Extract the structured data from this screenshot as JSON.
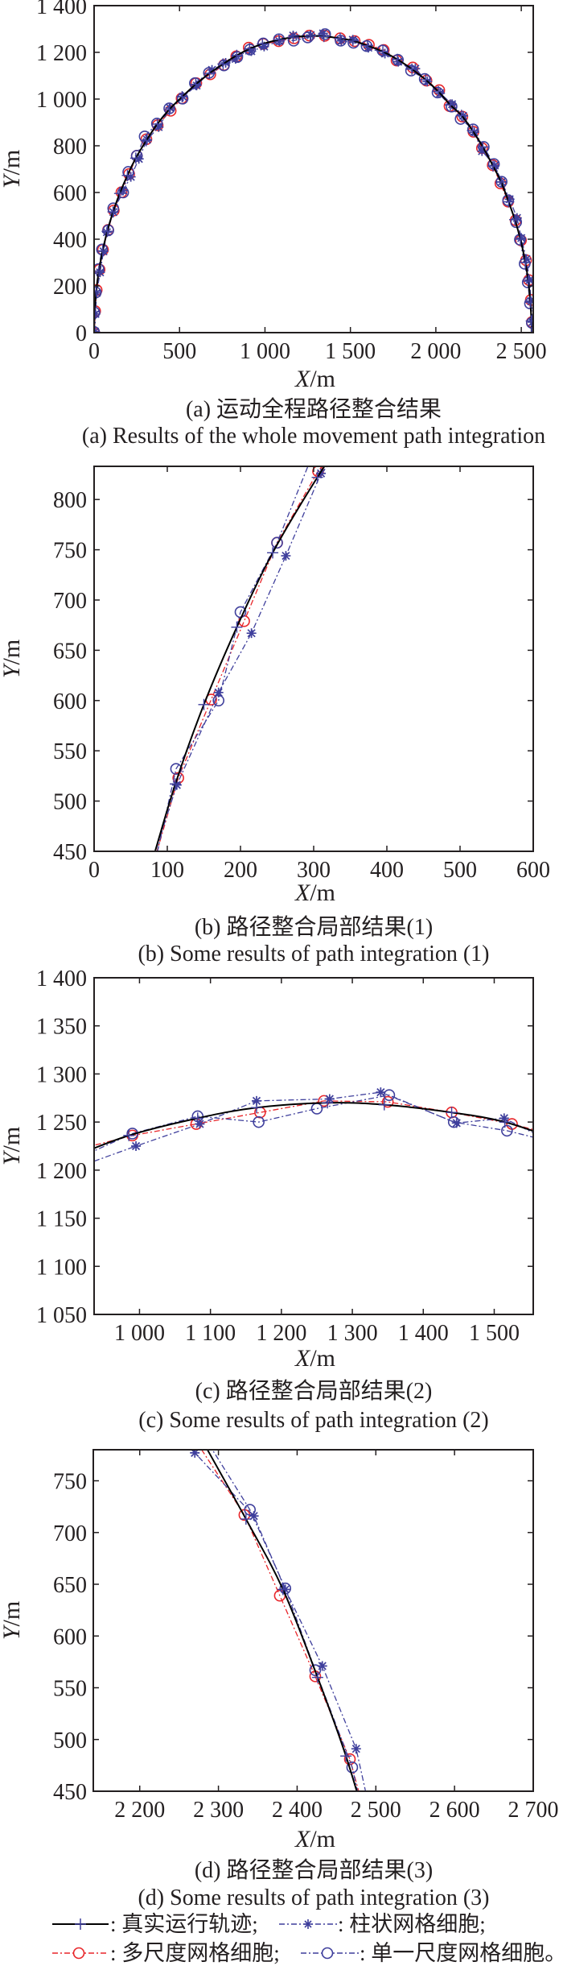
{
  "colors": {
    "true_path": "#000000",
    "multi_scale": "#e8262a",
    "blue": "#3f3f9c",
    "axis": "#231f20"
  },
  "chart_data": {
    "type": "line",
    "xlabel_var": "X",
    "ylabel_var": "Y",
    "unit": "/m",
    "series": [
      {
        "name": "真实运行轨迹",
        "key": "true_path",
        "marker": "plus",
        "line": "solid",
        "points": [
          [
            0,
            0
          ],
          [
            3,
            89
          ],
          [
            12,
            177
          ],
          [
            28,
            264
          ],
          [
            50,
            350
          ],
          [
            77,
            434
          ],
          [
            111,
            517
          ],
          [
            150,
            596
          ],
          [
            195,
            673
          ],
          [
            244,
            747
          ],
          [
            305,
            822
          ],
          [
            370,
            893
          ],
          [
            440,
            955
          ],
          [
            515,
            1010
          ],
          [
            595,
            1063
          ],
          [
            675,
            1110
          ],
          [
            755,
            1150
          ],
          [
            835,
            1187
          ],
          [
            910,
            1215
          ],
          [
            985,
            1236
          ],
          [
            1082,
            1254
          ],
          [
            1165,
            1265
          ],
          [
            1265,
            1270
          ],
          [
            1345,
            1268
          ],
          [
            1440,
            1260
          ],
          [
            1515,
            1250
          ],
          [
            1600,
            1229
          ],
          [
            1690,
            1203
          ],
          [
            1775,
            1170
          ],
          [
            1860,
            1128
          ],
          [
            1940,
            1083
          ],
          [
            2015,
            1032
          ],
          [
            2085,
            975
          ],
          [
            2150,
            930
          ],
          [
            2215,
            865
          ],
          [
            2275,
            795
          ],
          [
            2335,
            713
          ],
          [
            2382,
            645
          ],
          [
            2426,
            560
          ],
          [
            2462,
            484
          ],
          [
            2495,
            400
          ],
          [
            2524,
            300
          ],
          [
            2541,
            220
          ],
          [
            2553,
            130
          ],
          [
            2559,
            50
          ],
          [
            2560,
            0
          ]
        ]
      },
      {
        "name": "多尺度网格细胞",
        "key": "multi_scale",
        "marker": "circle",
        "line": "dashdot",
        "points": [
          [
            2,
            -3
          ],
          [
            6,
            92
          ],
          [
            15,
            182
          ],
          [
            32,
            270
          ],
          [
            52,
            355
          ],
          [
            82,
            440
          ],
          [
            115,
            523
          ],
          [
            160,
            601
          ],
          [
            205,
            679
          ],
          [
            250,
            757
          ],
          [
            306,
            828
          ],
          [
            372,
            888
          ],
          [
            448,
            950
          ],
          [
            512,
            1003
          ],
          [
            598,
            1068
          ],
          [
            680,
            1106
          ],
          [
            760,
            1146
          ],
          [
            832,
            1183
          ],
          [
            905,
            1220
          ],
          [
            990,
            1236
          ],
          [
            1080,
            1248
          ],
          [
            1170,
            1260
          ],
          [
            1260,
            1272
          ],
          [
            1350,
            1271
          ],
          [
            1440,
            1260
          ],
          [
            1525,
            1248
          ],
          [
            1608,
            1232
          ],
          [
            1695,
            1210
          ],
          [
            1770,
            1165
          ],
          [
            1865,
            1135
          ],
          [
            1945,
            1079
          ],
          [
            2020,
            1038
          ],
          [
            2080,
            970
          ],
          [
            2155,
            925
          ],
          [
            2220,
            860
          ],
          [
            2270,
            790
          ],
          [
            2333,
            717
          ],
          [
            2378,
            639
          ],
          [
            2423,
            561
          ],
          [
            2467,
            481
          ],
          [
            2498,
            395
          ],
          [
            2528,
            310
          ],
          [
            2545,
            225
          ],
          [
            2556,
            140
          ],
          [
            2562,
            45
          ]
        ]
      },
      {
        "name": "柱状网格细胞",
        "key": "columnar",
        "marker": "star",
        "line": "dashdot",
        "points": [
          [
            5,
            5
          ],
          [
            8,
            80
          ],
          [
            15,
            170
          ],
          [
            35,
            258
          ],
          [
            55,
            348
          ],
          [
            75,
            430
          ],
          [
            113,
            516
          ],
          [
            170,
            608
          ],
          [
            215,
            667
          ],
          [
            262,
            744
          ],
          [
            310,
            826
          ],
          [
            378,
            880
          ],
          [
            445,
            962
          ],
          [
            520,
            1010
          ],
          [
            600,
            1058
          ],
          [
            690,
            1125
          ],
          [
            770,
            1155
          ],
          [
            828,
            1172
          ],
          [
            920,
            1205
          ],
          [
            995,
            1225
          ],
          [
            1085,
            1248
          ],
          [
            1165,
            1272
          ],
          [
            1268,
            1274
          ],
          [
            1340,
            1281
          ],
          [
            1447,
            1249
          ],
          [
            1514,
            1254
          ],
          [
            1605,
            1220
          ],
          [
            1702,
            1195
          ],
          [
            1780,
            1160
          ],
          [
            1880,
            1130
          ],
          [
            1950,
            1075
          ],
          [
            2025,
            1025
          ],
          [
            2095,
            978
          ],
          [
            2160,
            928
          ],
          [
            2225,
            858
          ],
          [
            2270,
            777
          ],
          [
            2345,
            716
          ],
          [
            2385,
            645
          ],
          [
            2432,
            571
          ],
          [
            2475,
            491
          ],
          [
            2500,
            405
          ],
          [
            2530,
            315
          ],
          [
            2548,
            225
          ],
          [
            2557,
            135
          ],
          [
            2565,
            45
          ]
        ]
      },
      {
        "name": "单一尺度网格细胞",
        "key": "single_scale",
        "marker": "circle",
        "line": "dashdot",
        "points": [
          [
            0,
            3
          ],
          [
            2,
            86
          ],
          [
            10,
            172
          ],
          [
            26,
            272
          ],
          [
            46,
            356
          ],
          [
            83,
            438
          ],
          [
            112,
            532
          ],
          [
            170,
            600
          ],
          [
            200,
            688
          ],
          [
            250,
            757
          ],
          [
            296,
            840
          ],
          [
            368,
            895
          ],
          [
            440,
            960
          ],
          [
            518,
            1002
          ],
          [
            590,
            1068
          ],
          [
            672,
            1112
          ],
          [
            760,
            1144
          ],
          [
            838,
            1180
          ],
          [
            912,
            1212
          ],
          [
            990,
            1238
          ],
          [
            1082,
            1256
          ],
          [
            1168,
            1250
          ],
          [
            1250,
            1264
          ],
          [
            1352,
            1278
          ],
          [
            1443,
            1250
          ],
          [
            1518,
            1241
          ],
          [
            1595,
            1227
          ],
          [
            1688,
            1208
          ],
          [
            1778,
            1168
          ],
          [
            1855,
            1122
          ],
          [
            1935,
            1086
          ],
          [
            2010,
            1028
          ],
          [
            2092,
            968
          ],
          [
            2145,
            915
          ],
          [
            2218,
            870
          ],
          [
            2280,
            795
          ],
          [
            2340,
            722
          ],
          [
            2385,
            646
          ],
          [
            2423,
            567
          ],
          [
            2470,
            473
          ],
          [
            2492,
            398
          ],
          [
            2520,
            295
          ],
          [
            2538,
            215
          ],
          [
            2551,
            125
          ],
          [
            2562,
            42
          ]
        ]
      }
    ],
    "panels": [
      {
        "id": "a",
        "xlim": [
          0,
          2570
        ],
        "ylim": [
          0,
          1400
        ],
        "xticks": [
          0,
          500,
          1000,
          1500,
          2000,
          2500
        ],
        "xtick_labels": [
          "0",
          "500",
          "1 000",
          "1 500",
          "2 000",
          "2 500"
        ],
        "yticks": [
          0,
          200,
          400,
          600,
          800,
          1000,
          1200,
          1400
        ],
        "ytick_labels": [
          "0",
          "200",
          "400",
          "600",
          "800",
          "1 000",
          "1 200",
          "1 400"
        ],
        "caption_cn": "(a) 运动全程路径整合结果",
        "caption_en": "(a) Results of the whole movement path integration"
      },
      {
        "id": "b",
        "xlim": [
          0,
          600
        ],
        "ylim": [
          450,
          833
        ],
        "xticks": [
          0,
          100,
          200,
          300,
          400,
          500,
          600
        ],
        "xtick_labels": [
          "0",
          "100",
          "200",
          "300",
          "400",
          "500",
          "600"
        ],
        "yticks": [
          450,
          500,
          550,
          600,
          650,
          700,
          750,
          800
        ],
        "ytick_labels": [
          "450",
          "500",
          "550",
          "600",
          "650",
          "700",
          "750",
          "800"
        ],
        "caption_cn": "(b) 路径整合局部结果(1)",
        "caption_en": "(b) Some results of path integration (1)"
      },
      {
        "id": "c",
        "xlim": [
          936,
          1555
        ],
        "ylim": [
          1050,
          1400
        ],
        "xticks": [
          1000,
          1100,
          1200,
          1300,
          1400,
          1500
        ],
        "xtick_labels": [
          "1 000",
          "1 100",
          "1 200",
          "1 300",
          "1 400",
          "1 500"
        ],
        "yticks": [
          1050,
          1100,
          1150,
          1200,
          1250,
          1300,
          1350,
          1400
        ],
        "ytick_labels": [
          "1 050",
          "1 100",
          "1 150",
          "1 200",
          "1 250",
          "1 300",
          "1 350",
          "1 400"
        ],
        "caption_cn": "(c) 路径整合局部结果(2)",
        "caption_en": "(c) Some results of path integration (2)"
      },
      {
        "id": "d",
        "xlim": [
          2141,
          2700
        ],
        "ylim": [
          450,
          780
        ],
        "xticks": [
          2200,
          2300,
          2400,
          2500,
          2600,
          2700
        ],
        "xtick_labels": [
          "2 200",
          "2 300",
          "2 400",
          "2 500",
          "2 600",
          "2 700"
        ],
        "yticks": [
          450,
          500,
          550,
          600,
          650,
          700,
          750
        ],
        "ytick_labels": [
          "450",
          "500",
          "550",
          "600",
          "650",
          "700",
          "750"
        ],
        "caption_cn": "(d) 路径整合局部结果(3)",
        "caption_en": "(d) Some results of path integration (3)"
      }
    ],
    "legend": {
      "placement": "bottom",
      "items": [
        {
          "label": ": 真实运行轨迹;"
        },
        {
          "label": ": 柱状网格细胞;"
        },
        {
          "label": ": 多尺度网格细胞;"
        },
        {
          "label": ": 单一尺度网格细胞。"
        }
      ]
    }
  }
}
